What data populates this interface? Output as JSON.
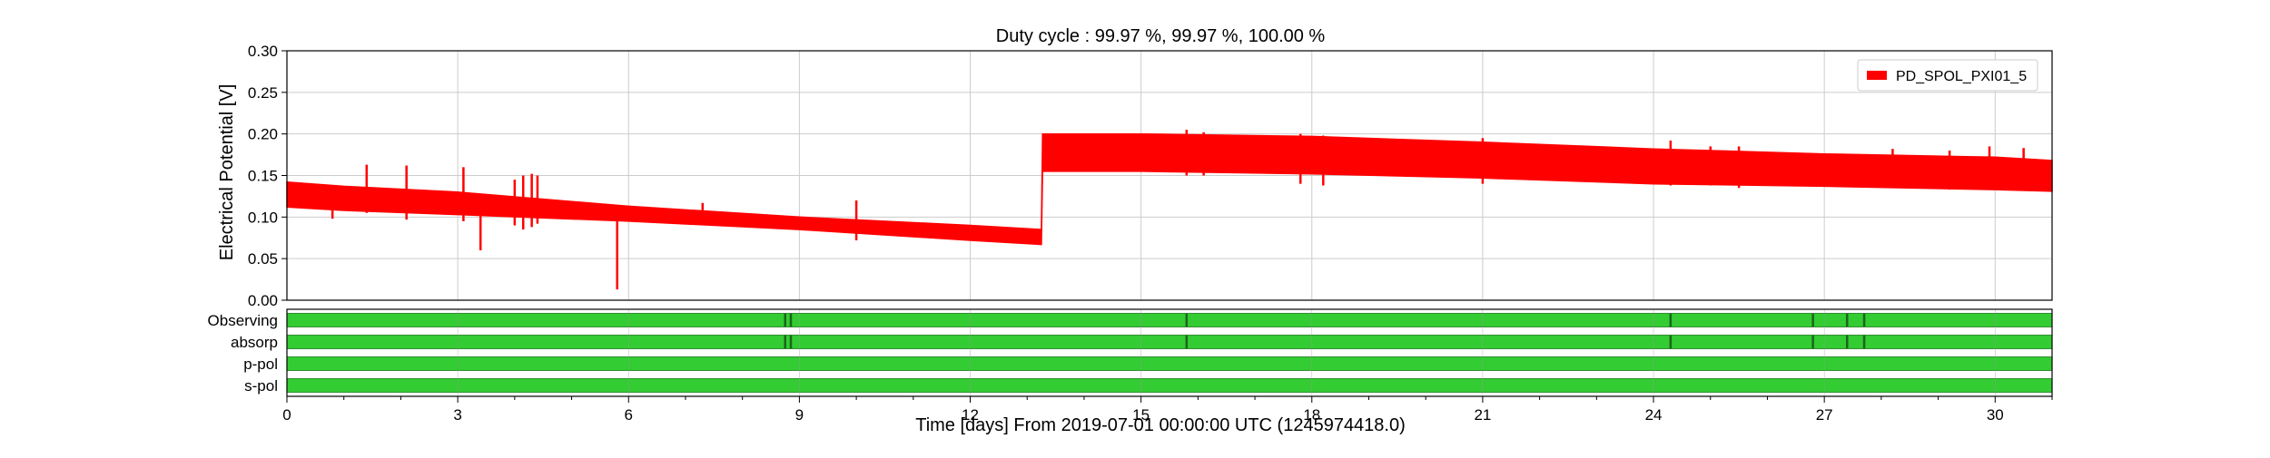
{
  "chart_data": {
    "type": "line",
    "title": "Duty cycle : 99.97 %, 99.97 %, 100.00 %",
    "xlabel": "Time [days] From 2019-07-01 00:00:00 UTC (1245974418.0)",
    "ylabel": "Electrical Potential [V]",
    "xlim": [
      0,
      31
    ],
    "ylim": [
      0,
      0.3
    ],
    "xticks": [
      0,
      3,
      6,
      9,
      12,
      15,
      18,
      21,
      24,
      27,
      30
    ],
    "xtick_labels": [
      "0",
      "3",
      "6",
      "9",
      "12",
      "15",
      "18",
      "21",
      "24",
      "27",
      "30"
    ],
    "yticks": [
      0.0,
      0.05,
      0.1,
      0.15,
      0.2,
      0.25,
      0.3
    ],
    "ytick_labels": [
      "0.00",
      "0.05",
      "0.10",
      "0.15",
      "0.20",
      "0.25",
      "0.30"
    ],
    "grid": true,
    "legend_position": "top-right",
    "series": [
      {
        "name": "PD_SPOL_PXI01_5",
        "color": "#ff0000",
        "band": [
          {
            "x": 0.0,
            "low": 0.112,
            "high": 0.142
          },
          {
            "x": 1.0,
            "low": 0.108,
            "high": 0.137
          },
          {
            "x": 3.0,
            "low": 0.103,
            "high": 0.13
          },
          {
            "x": 6.0,
            "low": 0.095,
            "high": 0.113
          },
          {
            "x": 9.0,
            "low": 0.085,
            "high": 0.1
          },
          {
            "x": 12.0,
            "low": 0.072,
            "high": 0.09
          },
          {
            "x": 13.25,
            "low": 0.067,
            "high": 0.085
          },
          {
            "x": 13.27,
            "low": 0.155,
            "high": 0.2
          },
          {
            "x": 15.0,
            "low": 0.155,
            "high": 0.2
          },
          {
            "x": 18.0,
            "low": 0.152,
            "high": 0.197
          },
          {
            "x": 21.0,
            "low": 0.147,
            "high": 0.19
          },
          {
            "x": 24.0,
            "low": 0.14,
            "high": 0.182
          },
          {
            "x": 27.0,
            "low": 0.137,
            "high": 0.176
          },
          {
            "x": 30.0,
            "low": 0.133,
            "high": 0.172
          },
          {
            "x": 31.0,
            "low": 0.131,
            "high": 0.168
          }
        ],
        "spikes": [
          {
            "x": 0.8,
            "low": 0.098,
            "high": 0.135
          },
          {
            "x": 1.4,
            "low": 0.105,
            "high": 0.163
          },
          {
            "x": 2.1,
            "low": 0.097,
            "high": 0.162
          },
          {
            "x": 3.1,
            "low": 0.095,
            "high": 0.16
          },
          {
            "x": 3.4,
            "low": 0.06,
            "high": 0.128
          },
          {
            "x": 4.0,
            "low": 0.09,
            "high": 0.145
          },
          {
            "x": 4.15,
            "low": 0.085,
            "high": 0.15
          },
          {
            "x": 4.3,
            "low": 0.088,
            "high": 0.152
          },
          {
            "x": 4.4,
            "low": 0.092,
            "high": 0.15
          },
          {
            "x": 5.8,
            "low": 0.013,
            "high": 0.11
          },
          {
            "x": 7.3,
            "low": 0.095,
            "high": 0.117
          },
          {
            "x": 10.0,
            "low": 0.072,
            "high": 0.12
          },
          {
            "x": 15.8,
            "low": 0.15,
            "high": 0.205
          },
          {
            "x": 16.1,
            "low": 0.15,
            "high": 0.202
          },
          {
            "x": 17.8,
            "low": 0.14,
            "high": 0.2
          },
          {
            "x": 18.2,
            "low": 0.138,
            "high": 0.198
          },
          {
            "x": 21.0,
            "low": 0.14,
            "high": 0.195
          },
          {
            "x": 22.0,
            "low": 0.145,
            "high": 0.188
          },
          {
            "x": 24.3,
            "low": 0.138,
            "high": 0.192
          },
          {
            "x": 25.0,
            "low": 0.138,
            "high": 0.185
          },
          {
            "x": 25.5,
            "low": 0.135,
            "high": 0.185
          },
          {
            "x": 28.2,
            "low": 0.135,
            "high": 0.182
          },
          {
            "x": 29.2,
            "low": 0.133,
            "high": 0.18
          },
          {
            "x": 29.9,
            "low": 0.135,
            "high": 0.185
          },
          {
            "x": 30.5,
            "low": 0.133,
            "high": 0.183
          }
        ]
      }
    ],
    "segments": [
      {
        "label": "Observing",
        "color": "#33cc33",
        "gap_color": "#1a661a",
        "range": [
          0,
          31
        ],
        "gaps": [
          8.75,
          8.85,
          15.8,
          24.3,
          26.8,
          27.4,
          27.7
        ]
      },
      {
        "label": "absorp",
        "color": "#33cc33",
        "gap_color": "#1a661a",
        "range": [
          0,
          31
        ],
        "gaps": [
          8.75,
          8.85,
          15.8,
          24.3,
          26.8,
          27.4,
          27.7
        ]
      },
      {
        "label": "p-pol",
        "color": "#33cc33",
        "gap_color": "#1a661a",
        "range": [
          0,
          31
        ],
        "gaps": []
      },
      {
        "label": "s-pol",
        "color": "#33cc33",
        "gap_color": "#1a661a",
        "range": [
          0,
          31
        ],
        "gaps": []
      }
    ]
  }
}
